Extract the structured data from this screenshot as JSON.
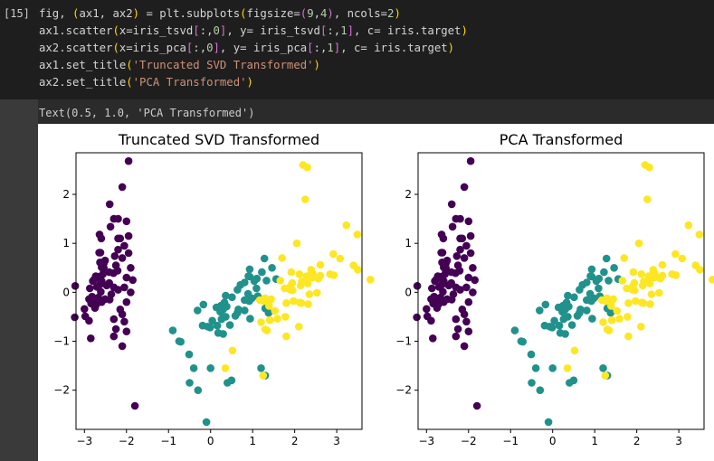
{
  "cell": {
    "prompt": "[15]",
    "code_lines": [
      [
        [
          "fig, ",
          "tok-kw"
        ],
        [
          "(",
          "tok-paren1"
        ],
        [
          "ax1, ax2",
          "tok-kw"
        ],
        [
          ")",
          "tok-paren1"
        ],
        [
          " = plt.subplots",
          "tok-kw"
        ],
        [
          "(",
          "tok-paren1"
        ],
        [
          "figsize=",
          "tok-kw"
        ],
        [
          "(",
          "tok-paren2"
        ],
        [
          "9",
          "tok-num"
        ],
        [
          ",",
          "tok-kw"
        ],
        [
          "4",
          "tok-num"
        ],
        [
          ")",
          "tok-paren2"
        ],
        [
          ", ncols=",
          "tok-kw"
        ],
        [
          "2",
          "tok-num"
        ],
        [
          ")",
          "tok-paren1"
        ]
      ],
      [
        [
          "ax1.scatter",
          "tok-kw"
        ],
        [
          "(",
          "tok-paren1"
        ],
        [
          "x=iris_tsvd",
          "tok-kw"
        ],
        [
          "[",
          "tok-paren2"
        ],
        [
          ":,",
          "tok-kw"
        ],
        [
          "0",
          "tok-num"
        ],
        [
          "]",
          "tok-paren2"
        ],
        [
          ", y= iris_tsvd",
          "tok-kw"
        ],
        [
          "[",
          "tok-paren2"
        ],
        [
          ":,",
          "tok-kw"
        ],
        [
          "1",
          "tok-num"
        ],
        [
          "]",
          "tok-paren2"
        ],
        [
          ", c= iris.target",
          "tok-kw"
        ],
        [
          ")",
          "tok-paren1"
        ]
      ],
      [
        [
          "ax2.scatter",
          "tok-kw"
        ],
        [
          "(",
          "tok-paren1"
        ],
        [
          "x=iris_pca",
          "tok-kw"
        ],
        [
          "[",
          "tok-paren2"
        ],
        [
          ":,",
          "tok-kw"
        ],
        [
          "0",
          "tok-num"
        ],
        [
          "]",
          "tok-paren2"
        ],
        [
          ", y= iris_pca",
          "tok-kw"
        ],
        [
          "[",
          "tok-paren2"
        ],
        [
          ":,",
          "tok-kw"
        ],
        [
          "1",
          "tok-num"
        ],
        [
          "]",
          "tok-paren2"
        ],
        [
          ", c= iris.target",
          "tok-kw"
        ],
        [
          ")",
          "tok-paren1"
        ]
      ],
      [
        [
          "ax1.set_title",
          "tok-kw"
        ],
        [
          "(",
          "tok-paren1"
        ],
        [
          "'Truncated SVD Transformed'",
          "tok-str"
        ],
        [
          ")",
          "tok-paren1"
        ]
      ],
      [
        [
          "ax2.set_title",
          "tok-kw"
        ],
        [
          "(",
          "tok-paren1"
        ],
        [
          "'PCA Transformed'",
          "tok-str"
        ],
        [
          ")",
          "tok-paren1"
        ]
      ]
    ],
    "output_text": "Text(0.5, 1.0, 'PCA Transformed')"
  },
  "chart_data": [
    {
      "type": "scatter",
      "title": "Truncated SVD Transformed",
      "xlim": [
        -3.2,
        3.6
      ],
      "ylim": [
        -2.8,
        2.85
      ],
      "xticks": [
        -3,
        -2,
        -1,
        0,
        1,
        2,
        3
      ],
      "yticks": [
        -2,
        -1,
        0,
        1,
        2
      ],
      "colors": [
        "#440154",
        "#21918c",
        "#fde725"
      ],
      "points": [
        [
          -2.68,
          0.32,
          0
        ],
        [
          -2.71,
          -0.18,
          0
        ],
        [
          -2.89,
          -0.14,
          0
        ],
        [
          -2.75,
          -0.32,
          0
        ],
        [
          -2.73,
          0.33,
          0
        ],
        [
          -2.28,
          0.74,
          0
        ],
        [
          -2.82,
          -0.09,
          0
        ],
        [
          -2.63,
          0.16,
          0
        ],
        [
          -2.89,
          -0.58,
          0
        ],
        [
          -2.67,
          -0.11,
          0
        ],
        [
          -2.51,
          0.65,
          0
        ],
        [
          -2.61,
          0.01,
          0
        ],
        [
          -2.79,
          -0.24,
          0
        ],
        [
          -3.23,
          -0.51,
          0
        ],
        [
          -2.64,
          1.18,
          0
        ],
        [
          -2.38,
          1.34,
          0
        ],
        [
          -2.62,
          0.81,
          0
        ],
        [
          -2.65,
          0.31,
          0
        ],
        [
          -2.2,
          0.87,
          0
        ],
        [
          -2.59,
          0.51,
          0
        ],
        [
          -2.31,
          0.39,
          0
        ],
        [
          -2.54,
          0.43,
          0
        ],
        [
          -3.22,
          0.13,
          0
        ],
        [
          -2.3,
          0.1,
          0
        ],
        [
          -2.36,
          -0.04,
          0
        ],
        [
          -2.51,
          -0.14,
          0
        ],
        [
          -2.47,
          0.14,
          0
        ],
        [
          -2.56,
          0.37,
          0
        ],
        [
          -2.64,
          0.31,
          0
        ],
        [
          -2.63,
          -0.19,
          0
        ],
        [
          -2.59,
          -0.2,
          0
        ],
        [
          -2.41,
          0.41,
          0
        ],
        [
          -2.65,
          0.81,
          0
        ],
        [
          -2.6,
          1.1,
          0
        ],
        [
          -2.67,
          -0.11,
          0
        ],
        [
          -2.87,
          0.08,
          0
        ],
        [
          -2.63,
          0.61,
          0
        ],
        [
          -2.8,
          0.23,
          0
        ],
        [
          -2.98,
          -0.49,
          0
        ],
        [
          -2.59,
          0.23,
          0
        ],
        [
          -2.77,
          0.26,
          0
        ],
        [
          -2.85,
          -0.94,
          0
        ],
        [
          -3.0,
          -0.34,
          0
        ],
        [
          -2.41,
          0.19,
          0
        ],
        [
          -2.21,
          0.44,
          0
        ],
        [
          -2.72,
          -0.25,
          0
        ],
        [
          -2.54,
          0.5,
          0
        ],
        [
          -2.84,
          -0.23,
          0
        ],
        [
          -2.54,
          0.59,
          0
        ],
        [
          -2.7,
          0.11,
          0
        ],
        [
          -1.95,
          2.68,
          0
        ],
        [
          -2.1,
          2.15,
          0
        ],
        [
          -2.4,
          1.8,
          0
        ],
        [
          -2.3,
          1.5,
          0
        ],
        [
          -2.2,
          1.5,
          0
        ],
        [
          -2.0,
          1.45,
          0
        ],
        [
          -2.15,
          1.1,
          0
        ],
        [
          -2.05,
          0.95,
          0
        ],
        [
          -1.95,
          0.8,
          0
        ],
        [
          -2.1,
          0.7,
          0
        ],
        [
          -2.25,
          0.55,
          0
        ],
        [
          -1.9,
          0.5,
          0
        ],
        [
          -2.0,
          0.3,
          0
        ],
        [
          -1.85,
          0.25,
          0
        ],
        [
          -2.2,
          0.05,
          0
        ],
        [
          -1.9,
          0.0,
          0
        ],
        [
          -2.0,
          -0.2,
          0
        ],
        [
          -2.1,
          -0.45,
          0
        ],
        [
          -2.3,
          -0.55,
          0
        ],
        [
          -2.25,
          -0.75,
          0
        ],
        [
          -2.0,
          -0.8,
          0
        ],
        [
          -2.3,
          -0.9,
          0
        ],
        [
          -2.1,
          -1.1,
          0
        ],
        [
          -2.05,
          -0.6,
          0
        ],
        [
          -1.8,
          -2.32,
          0
        ],
        [
          -1.95,
          1.15,
          0
        ],
        [
          -2.2,
          1.1,
          0
        ],
        [
          -2.05,
          0.1,
          0
        ],
        [
          -2.4,
          -0.15,
          0
        ],
        [
          -2.15,
          -0.35,
          0
        ],
        [
          1.28,
          0.69,
          1
        ],
        [
          0.93,
          0.32,
          1
        ],
        [
          1.46,
          0.5,
          1
        ],
        [
          0.18,
          -0.83,
          1
        ],
        [
          1.09,
          0.08,
          1
        ],
        [
          0.64,
          -0.42,
          1
        ],
        [
          1.1,
          0.28,
          1
        ],
        [
          -0.75,
          -1.0,
          1
        ],
        [
          1.04,
          0.23,
          1
        ],
        [
          -0.01,
          -0.72,
          1
        ],
        [
          -0.51,
          -1.27,
          1
        ],
        [
          0.51,
          -0.1,
          1
        ],
        [
          0.26,
          -0.55,
          1
        ],
        [
          0.98,
          -0.12,
          1
        ],
        [
          -0.17,
          -0.25,
          1
        ],
        [
          0.93,
          0.47,
          1
        ],
        [
          0.66,
          -0.35,
          1
        ],
        [
          0.23,
          -0.33,
          1
        ],
        [
          0.94,
          -0.54,
          1
        ],
        [
          0.04,
          -0.58,
          1
        ],
        [
          1.12,
          -0.08,
          1
        ],
        [
          0.36,
          -0.07,
          1
        ],
        [
          1.3,
          -0.33,
          1
        ],
        [
          0.92,
          -0.18,
          1
        ],
        [
          0.71,
          0.15,
          1
        ],
        [
          0.9,
          0.33,
          1
        ],
        [
          1.33,
          0.24,
          1
        ],
        [
          1.56,
          0.27,
          1
        ],
        [
          0.81,
          -0.16,
          1
        ],
        [
          -0.31,
          -0.37,
          1
        ],
        [
          -0.07,
          -0.7,
          1
        ],
        [
          -0.19,
          -0.68,
          1
        ],
        [
          0.14,
          -0.31,
          1
        ],
        [
          1.38,
          -0.42,
          1
        ],
        [
          0.59,
          -0.48,
          1
        ],
        [
          0.81,
          0.2,
          1
        ],
        [
          1.22,
          0.41,
          1
        ],
        [
          0.81,
          -0.37,
          1
        ],
        [
          0.25,
          -0.27,
          1
        ],
        [
          0.16,
          -0.68,
          1
        ],
        [
          0.46,
          -0.67,
          1
        ],
        [
          0.89,
          -0.03,
          1
        ],
        [
          0.23,
          -0.4,
          1
        ],
        [
          -0.71,
          -1.01,
          1
        ],
        [
          0.36,
          -0.5,
          1
        ],
        [
          0.33,
          -0.21,
          1
        ],
        [
          0.38,
          -0.29,
          1
        ],
        [
          0.64,
          0.05,
          1
        ],
        [
          -0.9,
          -0.78,
          1
        ],
        [
          0.3,
          -0.35,
          1
        ],
        [
          -0.4,
          -1.55,
          1
        ],
        [
          0.0,
          -1.55,
          1
        ],
        [
          -0.3,
          -2.0,
          1
        ],
        [
          -0.1,
          -2.65,
          1
        ],
        [
          0.4,
          -1.85,
          1
        ],
        [
          0.5,
          -1.8,
          1
        ],
        [
          1.2,
          -1.55,
          1
        ],
        [
          1.3,
          -1.7,
          1
        ],
        [
          -0.5,
          -1.85,
          1
        ],
        [
          0.3,
          -0.85,
          1
        ],
        [
          2.53,
          -0.01,
          2
        ],
        [
          1.41,
          -0.57,
          2
        ],
        [
          2.61,
          0.34,
          2
        ],
        [
          1.97,
          -0.18,
          2
        ],
        [
          2.35,
          -0.04,
          2
        ],
        [
          3.4,
          0.55,
          2
        ],
        [
          0.52,
          -1.19,
          2
        ],
        [
          2.93,
          0.35,
          2
        ],
        [
          2.32,
          -0.24,
          2
        ],
        [
          2.92,
          0.78,
          2
        ],
        [
          1.66,
          0.24,
          2
        ],
        [
          1.8,
          -0.22,
          2
        ],
        [
          2.17,
          0.22,
          2
        ],
        [
          1.34,
          -0.78,
          2
        ],
        [
          1.59,
          -0.54,
          2
        ],
        [
          1.9,
          0.12,
          2
        ],
        [
          1.95,
          0.04,
          2
        ],
        [
          3.49,
          1.18,
          2
        ],
        [
          3.8,
          0.26,
          2
        ],
        [
          1.3,
          -0.76,
          2
        ],
        [
          2.43,
          0.38,
          2
        ],
        [
          1.2,
          -0.61,
          2
        ],
        [
          3.5,
          0.46,
          2
        ],
        [
          1.39,
          -0.2,
          2
        ],
        [
          2.28,
          0.33,
          2
        ],
        [
          2.61,
          0.56,
          2
        ],
        [
          1.26,
          -0.18,
          2
        ],
        [
          1.29,
          -0.12,
          2
        ],
        [
          2.12,
          -0.21,
          2
        ],
        [
          2.39,
          0.46,
          2
        ],
        [
          2.84,
          0.37,
          2
        ],
        [
          3.23,
          1.37,
          2
        ],
        [
          2.16,
          -0.22,
          2
        ],
        [
          1.44,
          -0.14,
          2
        ],
        [
          1.78,
          -0.5,
          2
        ],
        [
          3.08,
          0.69,
          2
        ],
        [
          2.14,
          0.14,
          2
        ],
        [
          1.9,
          0.05,
          2
        ],
        [
          1.17,
          -0.16,
          2
        ],
        [
          2.11,
          0.37,
          2
        ],
        [
          2.31,
          0.18,
          2
        ],
        [
          1.92,
          0.41,
          2
        ],
        [
          1.41,
          -0.57,
          2
        ],
        [
          2.56,
          0.28,
          2
        ],
        [
          2.42,
          0.3,
          2
        ],
        [
          1.94,
          0.19,
          2
        ],
        [
          1.53,
          -0.38,
          2
        ],
        [
          1.76,
          0.08,
          2
        ],
        [
          1.9,
          0.12,
          2
        ],
        [
          1.39,
          -0.28,
          2
        ],
        [
          2.2,
          2.6,
          2
        ],
        [
          2.3,
          2.55,
          2
        ],
        [
          2.25,
          1.9,
          2
        ],
        [
          2.05,
          1.0,
          2
        ],
        [
          1.25,
          -1.7,
          2
        ],
        [
          0.35,
          -1.55,
          2
        ],
        [
          2.1,
          -0.7,
          2
        ],
        [
          1.8,
          -0.9,
          2
        ],
        [
          2.4,
          0.4,
          2
        ],
        [
          1.7,
          0.7,
          2
        ]
      ]
    },
    {
      "type": "scatter",
      "title": "PCA Transformed",
      "xlim": [
        -3.2,
        3.6
      ],
      "ylim": [
        -2.8,
        2.85
      ],
      "xticks": [
        -3,
        -2,
        -1,
        0,
        1,
        2,
        3
      ],
      "yticks": [
        -2,
        -1,
        0,
        1,
        2
      ],
      "colors": [
        "#440154",
        "#21918c",
        "#fde725"
      ],
      "points": "same"
    }
  ]
}
